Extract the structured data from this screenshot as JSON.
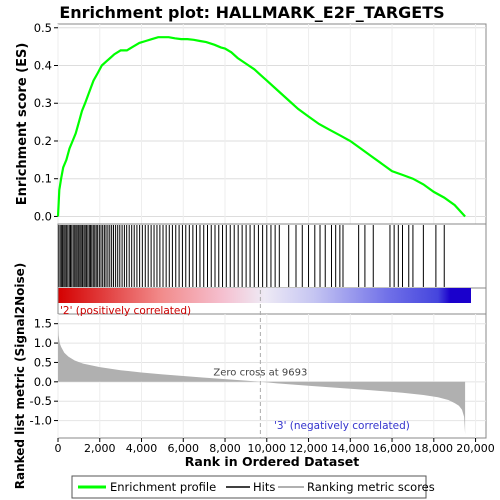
{
  "title": "Enrichment plot: HALLMARK_E2F_TARGETS",
  "colors": {
    "enrichment_line": "#00ff00",
    "hits": "#000000",
    "metric_fill": "#b0b0b0",
    "zero_line": "#aaaaaa",
    "pos_label": "#cc0000",
    "neg_label": "#3333cc"
  },
  "chart_data": [
    {
      "type": "line",
      "panel": "enrichment",
      "ylabel": "Enrichment score (ES)",
      "xlim": [
        0,
        20500
      ],
      "ylim": [
        -0.02,
        0.51
      ],
      "y_ticks": [
        0.0,
        0.1,
        0.2,
        0.3,
        0.4,
        0.5
      ],
      "y_tick_labels": [
        "0.0",
        "0.1",
        "0.2",
        "0.3",
        "0.4",
        "0.5"
      ],
      "grid": true,
      "series": [
        {
          "name": "Enrichment profile",
          "x": [
            0,
            60,
            150,
            250,
            400,
            550,
            700,
            850,
            1000,
            1150,
            1300,
            1500,
            1700,
            1900,
            2100,
            2300,
            2500,
            2700,
            3000,
            3300,
            3600,
            3900,
            4200,
            4500,
            4800,
            5000,
            5300,
            5600,
            5900,
            6200,
            6500,
            6800,
            7100,
            7500,
            7800,
            8000,
            8300,
            8600,
            9000,
            9400,
            9700,
            10000,
            10500,
            11000,
            11500,
            12000,
            12500,
            13000,
            13500,
            14000,
            14500,
            15000,
            15500,
            16000,
            16500,
            17000,
            17500,
            18000,
            18500,
            19000,
            19500
          ],
          "y": [
            0.0,
            0.07,
            0.1,
            0.13,
            0.15,
            0.18,
            0.2,
            0.22,
            0.25,
            0.28,
            0.3,
            0.33,
            0.36,
            0.38,
            0.4,
            0.41,
            0.42,
            0.43,
            0.44,
            0.44,
            0.45,
            0.46,
            0.465,
            0.47,
            0.475,
            0.475,
            0.475,
            0.472,
            0.47,
            0.47,
            0.468,
            0.465,
            0.462,
            0.455,
            0.448,
            0.445,
            0.435,
            0.42,
            0.405,
            0.39,
            0.375,
            0.36,
            0.335,
            0.31,
            0.285,
            0.265,
            0.245,
            0.23,
            0.215,
            0.2,
            0.18,
            0.16,
            0.14,
            0.12,
            0.11,
            0.1,
            0.085,
            0.065,
            0.05,
            0.03,
            0.0
          ]
        }
      ]
    },
    {
      "type": "scatter",
      "panel": "hits",
      "name": "Hits",
      "xlim": [
        0,
        20500
      ],
      "hit_positions": [
        30,
        100,
        160,
        220,
        280,
        340,
        400,
        470,
        540,
        600,
        660,
        730,
        800,
        860,
        920,
        990,
        1050,
        1110,
        1170,
        1240,
        1300,
        1360,
        1430,
        1500,
        1560,
        1620,
        1690,
        1760,
        1830,
        1900,
        1980,
        2060,
        2140,
        2220,
        2300,
        2390,
        2480,
        2570,
        2660,
        2760,
        2860,
        2960,
        3070,
        3180,
        3290,
        3410,
        3530,
        3650,
        3780,
        3910,
        4040,
        4180,
        4320,
        4460,
        4600,
        4740,
        4880,
        5030,
        5180,
        5330,
        5480,
        5640,
        5800,
        5960,
        6120,
        6290,
        6460,
        6630,
        6800,
        6980,
        7160,
        7340,
        7520,
        7700,
        7880,
        8060,
        8250,
        8440,
        8630,
        8820,
        9010,
        9200,
        9400,
        9600,
        9800,
        10000,
        10200,
        10400,
        10600,
        11050,
        11400,
        11700,
        12000,
        12300,
        12550,
        12800,
        13100,
        13300,
        13500,
        13650,
        14400,
        14700,
        15100,
        15900,
        16100,
        16300,
        16500,
        16800,
        17000,
        17500,
        18100,
        18500
      ]
    },
    {
      "type": "area",
      "panel": "ranked_metric",
      "name": "Ranking metric scores",
      "ylabel": "Ranked list metric (Signal2Noise)",
      "xlabel": "Rank in Ordered Dataset",
      "xlim": [
        0,
        20500
      ],
      "ylim": [
        -1.45,
        1.75
      ],
      "x_ticks": [
        0,
        2000,
        4000,
        6000,
        8000,
        10000,
        12000,
        14000,
        16000,
        18000,
        20000
      ],
      "x_tick_labels": [
        "0",
        "2,000",
        "4,000",
        "6,000",
        "8,000",
        "10,000",
        "12,000",
        "14,000",
        "16,000",
        "18,000",
        "20,000"
      ],
      "y_ticks": [
        1.5,
        1.0,
        0.5,
        0.0,
        -0.5,
        -1.0
      ],
      "y_tick_labels": [
        "1.5",
        "1.0",
        "0.5",
        "0.0",
        "-0.5",
        "-1.0"
      ],
      "x": [
        0,
        30,
        80,
        150,
        300,
        500,
        800,
        1200,
        2000,
        3000,
        4000,
        5000,
        6000,
        7000,
        8000,
        9000,
        9693,
        10500,
        12000,
        13500,
        15000,
        16500,
        17500,
        18200,
        18700,
        19000,
        19200,
        19350,
        19450,
        19500
      ],
      "values": [
        1.65,
        1.2,
        1.0,
        0.9,
        0.75,
        0.65,
        0.55,
        0.47,
        0.38,
        0.3,
        0.24,
        0.19,
        0.15,
        0.11,
        0.07,
        0.03,
        0.0,
        -0.04,
        -0.1,
        -0.16,
        -0.22,
        -0.28,
        -0.34,
        -0.4,
        -0.47,
        -0.55,
        -0.62,
        -0.72,
        -0.9,
        -1.35
      ],
      "zero_cross": 9693,
      "annotations": {
        "zero_cross": "Zero cross at 9693",
        "positive": "'2' (positively correlated)",
        "negative": "'3' (negatively correlated)"
      }
    }
  ],
  "legend": {
    "items": [
      "Enrichment profile",
      "Hits",
      "Ranking metric scores"
    ]
  }
}
